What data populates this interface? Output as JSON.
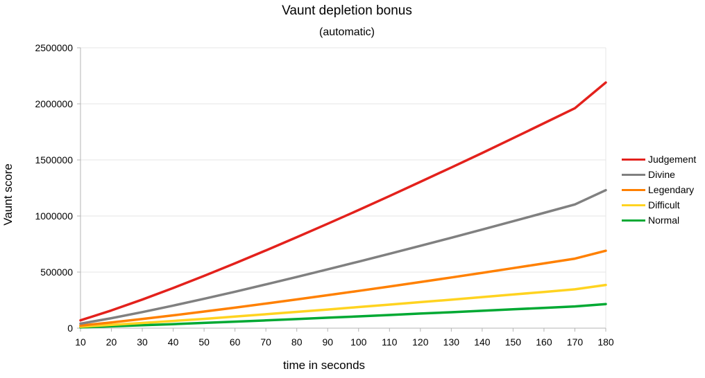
{
  "chart_data": {
    "type": "line",
    "title": "Vaunt depletion bonus",
    "subtitle": "(automatic)",
    "xlabel": "time in seconds",
    "ylabel": "Vaunt score",
    "x": [
      10,
      20,
      30,
      40,
      50,
      60,
      70,
      80,
      90,
      100,
      110,
      120,
      130,
      140,
      150,
      160,
      170,
      180
    ],
    "xlim": [
      10,
      180
    ],
    "ylim": [
      0,
      2500000
    ],
    "x_ticks": [
      "10",
      "20",
      "30",
      "40",
      "50",
      "60",
      "70",
      "80",
      "90",
      "100",
      "110",
      "120",
      "130",
      "140",
      "150",
      "160",
      "170",
      "180"
    ],
    "y_ticks": [
      "0",
      "500000",
      "1000000",
      "1500000",
      "2000000",
      "2500000"
    ],
    "grid": "horizontal",
    "legend_position": "right",
    "series": [
      {
        "name": "Judgement",
        "color": "#e3211c",
        "values": [
          70000,
          158000,
          255000,
          358000,
          466000,
          578000,
          693000,
          811000,
          931000,
          1053000,
          1178000,
          1305000,
          1433000,
          1562000,
          1694000,
          1827000,
          1961000,
          2190000
        ]
      },
      {
        "name": "Divine",
        "color": "#808080",
        "values": [
          40000,
          89000,
          143000,
          201000,
          262000,
          325000,
          390000,
          456000,
          524000,
          593000,
          663000,
          734000,
          806000,
          879000,
          953000,
          1028000,
          1103000,
          1230000
        ]
      },
      {
        "name": "Legendary",
        "color": "#ff8000",
        "values": [
          23000,
          51000,
          82000,
          114000,
          148000,
          183000,
          219000,
          256000,
          294000,
          332000,
          371000,
          411000,
          452000,
          493000,
          535000,
          577000,
          620000,
          690000
        ]
      },
      {
        "name": "Difficult",
        "color": "#ffd320",
        "values": [
          13000,
          29000,
          46000,
          64000,
          83000,
          103000,
          124000,
          145000,
          166000,
          188000,
          210000,
          232000,
          254000,
          277000,
          300000,
          323000,
          346000,
          385000
        ]
      },
      {
        "name": "Normal",
        "color": "#00a933",
        "values": [
          7000,
          16000,
          26000,
          36000,
          47000,
          58000,
          69000,
          81000,
          93000,
          105000,
          117000,
          130000,
          142000,
          155000,
          168000,
          181000,
          194000,
          215000
        ]
      }
    ]
  }
}
